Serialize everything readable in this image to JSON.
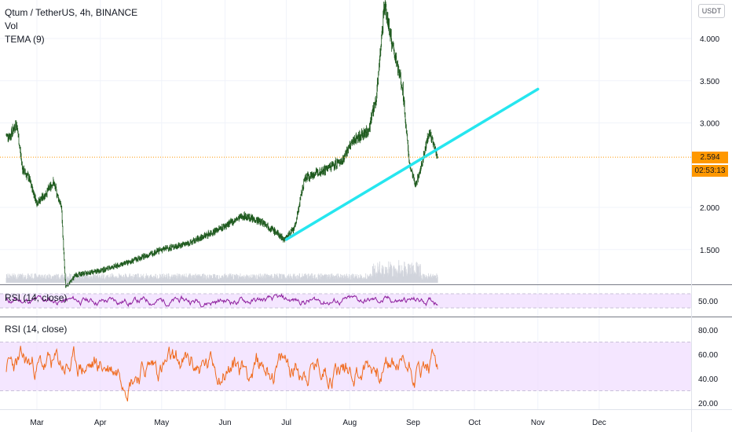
{
  "header": {
    "symbol_title": "Qtum / TetherUS, 4h, BINANCE",
    "vol_label": "Vol",
    "tema_label": "TEMA (9)"
  },
  "unit_badge": "USDT",
  "last_price_label": "2.594",
  "countdown_label": "02:53:13",
  "rsi_panel_1_label": "RSI (14, close)",
  "rsi_panel_2_label": "RSI (14, close)",
  "colors": {
    "candles": "#1e5a1e",
    "trendline": "#26e6ef",
    "rsi1": "#8e1f9e",
    "rsi2": "#f06a1c",
    "rsi_band": "#f0dcff",
    "price_tag": "#ff9800",
    "volume": "#d1d4dc"
  },
  "chart_data": [
    {
      "type": "candlestick",
      "x_ticks": [
        "Mar",
        "Apr",
        "May",
        "Jun",
        "Jul",
        "Aug",
        "Sep",
        "Oct",
        "Nov",
        "Dec"
      ],
      "y_ticks": [
        "4.000",
        "3.500",
        "3.000",
        "2.000",
        "1.500"
      ],
      "ylim": [
        1.0,
        4.5
      ],
      "price_path": [
        {
          "x": "Feb 17",
          "y": 2.85
        },
        {
          "x": "Feb 20",
          "y": 3.0
        },
        {
          "x": "Feb 23",
          "y": 2.45
        },
        {
          "x": "Feb 26",
          "y": 2.35
        },
        {
          "x": "Mar 1",
          "y": 2.05
        },
        {
          "x": "Mar 5",
          "y": 2.15
        },
        {
          "x": "Mar 9",
          "y": 2.3
        },
        {
          "x": "Mar 13",
          "y": 2.0
        },
        {
          "x": "Mar 15",
          "y": 1.05
        },
        {
          "x": "Mar 20",
          "y": 1.2
        },
        {
          "x": "Apr 1",
          "y": 1.25
        },
        {
          "x": "Apr 15",
          "y": 1.35
        },
        {
          "x": "May 1",
          "y": 1.5
        },
        {
          "x": "May 15",
          "y": 1.58
        },
        {
          "x": "Jun 1",
          "y": 1.78
        },
        {
          "x": "Jun 10",
          "y": 1.9
        },
        {
          "x": "Jun 20",
          "y": 1.82
        },
        {
          "x": "Jun 30",
          "y": 1.62
        },
        {
          "x": "Jul 5",
          "y": 1.75
        },
        {
          "x": "Jul 10",
          "y": 2.35
        },
        {
          "x": "Jul 20",
          "y": 2.45
        },
        {
          "x": "Jul 28",
          "y": 2.55
        },
        {
          "x": "Aug 3",
          "y": 2.8
        },
        {
          "x": "Aug 10",
          "y": 2.9
        },
        {
          "x": "Aug 14",
          "y": 3.3
        },
        {
          "x": "Aug 18",
          "y": 4.4
        },
        {
          "x": "Aug 22",
          "y": 3.9
        },
        {
          "x": "Aug 27",
          "y": 3.4
        },
        {
          "x": "Aug 30",
          "y": 2.55
        },
        {
          "x": "Sep 2",
          "y": 2.25
        },
        {
          "x": "Sep 5",
          "y": 2.5
        },
        {
          "x": "Sep 9",
          "y": 2.9
        },
        {
          "x": "Sep 13",
          "y": 2.594
        }
      ],
      "last_price": 2.594,
      "trendline": {
        "start": {
          "x": "Jul 1",
          "y": 1.62
        },
        "end": {
          "x": "Nov 1",
          "y": 3.4
        }
      }
    },
    {
      "type": "line",
      "title": "RSI (14, close)",
      "y_ticks": [
        "50.00"
      ],
      "ylim": [
        20,
        80
      ]
    },
    {
      "type": "line",
      "title": "RSI (14, close)",
      "y_ticks": [
        "80.00",
        "60.00",
        "40.00",
        "20.00"
      ],
      "ylim": [
        15,
        85
      ],
      "band": [
        30,
        70
      ]
    }
  ]
}
